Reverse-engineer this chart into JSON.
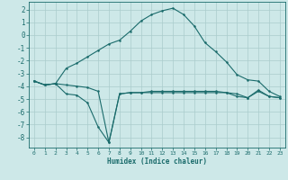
{
  "title": "",
  "xlabel": "Humidex (Indice chaleur)",
  "bg_color": "#cde8e8",
  "line_color": "#1a6b6b",
  "grid_color": "#aacccc",
  "xlim": [
    -0.5,
    23.5
  ],
  "ylim": [
    -8.8,
    2.6
  ],
  "yticks": [
    2,
    1,
    0,
    -1,
    -2,
    -3,
    -4,
    -5,
    -6,
    -7,
    -8
  ],
  "xticks": [
    0,
    1,
    2,
    3,
    4,
    5,
    6,
    7,
    8,
    9,
    10,
    11,
    12,
    13,
    14,
    15,
    16,
    17,
    18,
    19,
    20,
    21,
    22,
    23
  ],
  "curve1_x": [
    0,
    1,
    2,
    3,
    4,
    5,
    6,
    7,
    8,
    9,
    10,
    11,
    12,
    13,
    14,
    15,
    16,
    17,
    18,
    19,
    20,
    21,
    22,
    23
  ],
  "curve1_y": [
    -3.6,
    -3.9,
    -3.8,
    -2.6,
    -2.2,
    -1.7,
    -1.2,
    -0.7,
    -0.4,
    0.3,
    1.1,
    1.6,
    1.9,
    2.1,
    1.6,
    0.7,
    -0.6,
    -1.3,
    -2.1,
    -3.1,
    -3.5,
    -3.6,
    -4.4,
    -4.8
  ],
  "curve2_x": [
    0,
    1,
    2,
    3,
    4,
    5,
    6,
    7,
    8,
    9,
    10,
    11,
    12,
    13,
    14,
    15,
    16,
    17,
    18,
    19,
    20,
    21,
    22,
    23
  ],
  "curve2_y": [
    -3.6,
    -3.9,
    -3.8,
    -4.6,
    -4.7,
    -5.3,
    -7.2,
    -8.4,
    -4.6,
    -4.5,
    -4.5,
    -4.4,
    -4.4,
    -4.4,
    -4.4,
    -4.4,
    -4.4,
    -4.4,
    -4.5,
    -4.6,
    -4.9,
    -4.4,
    -4.8,
    -4.9
  ],
  "curve3_x": [
    0,
    1,
    2,
    3,
    4,
    5,
    6,
    7,
    8,
    9,
    10,
    11,
    12,
    13,
    14,
    15,
    16,
    17,
    18,
    19,
    20,
    21,
    22,
    23
  ],
  "curve3_y": [
    -3.6,
    -3.9,
    -3.8,
    -3.9,
    -4.0,
    -4.1,
    -4.4,
    -8.4,
    -4.6,
    -4.5,
    -4.5,
    -4.5,
    -4.5,
    -4.5,
    -4.5,
    -4.5,
    -4.5,
    -4.5,
    -4.5,
    -4.8,
    -4.9,
    -4.3,
    -4.8,
    -4.9
  ]
}
